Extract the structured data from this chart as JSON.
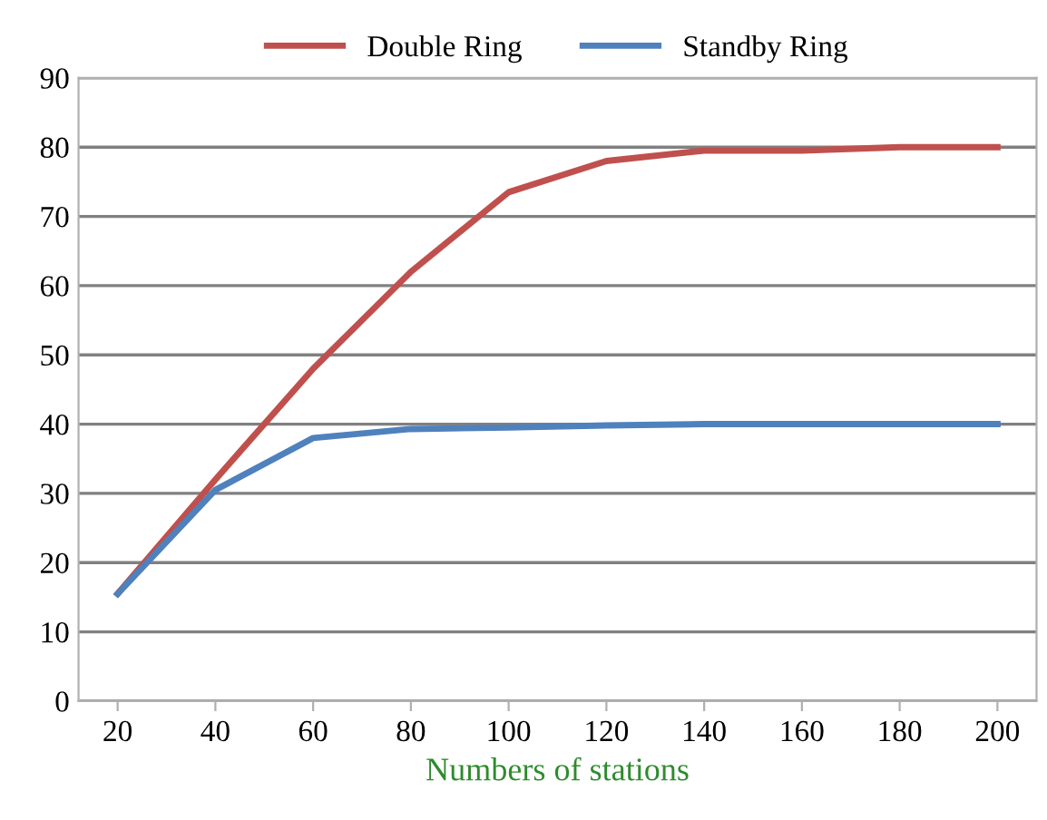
{
  "chart_data": {
    "type": "line",
    "xlabel": "Numbers of stations",
    "categories": [
      "20",
      "40",
      "60",
      "80",
      "100",
      "120",
      "140",
      "160",
      "180",
      "200"
    ],
    "series": [
      {
        "name": "Double Ring",
        "color": "#c0504d",
        "values": [
          15.5,
          32,
          48,
          62,
          73.5,
          78,
          79.5,
          79.5,
          80,
          80
        ]
      },
      {
        "name": "Standby Ring",
        "color": "#4f81bd",
        "values": [
          15.5,
          30.5,
          38,
          39.3,
          39.5,
          39.8,
          40,
          40,
          40,
          40
        ]
      }
    ],
    "ylim": [
      0,
      90
    ],
    "yticks": [
      0,
      10,
      20,
      30,
      40,
      50,
      60,
      70,
      80,
      90
    ],
    "grid": "y",
    "legend": "top",
    "marker": "none",
    "line_style": "solid"
  }
}
